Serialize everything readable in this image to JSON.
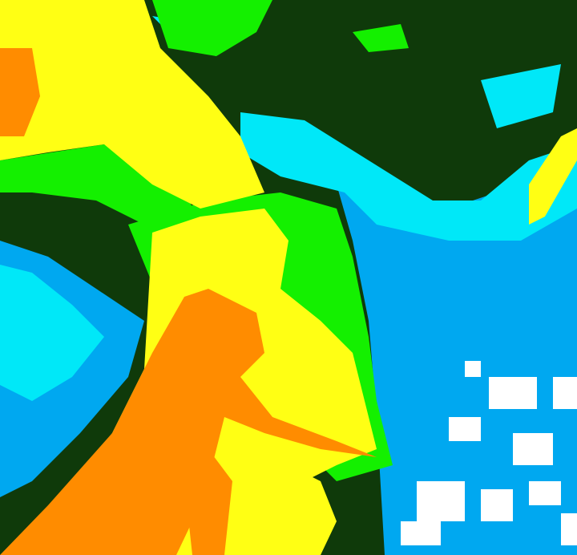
{
  "map": {
    "type": "classified raster",
    "class_colors": {
      "orange": "#ff8c00",
      "yellow": "#ffff14",
      "green": "#14f000",
      "dark_green": "#0f3a0a",
      "cyan": "#00e8f8",
      "blue": "#00a8f0",
      "white": "#ffffff"
    }
  }
}
